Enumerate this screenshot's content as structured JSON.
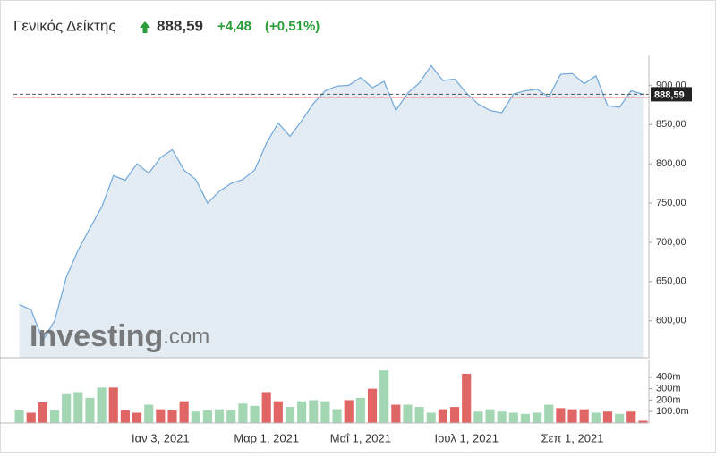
{
  "header": {
    "title": "Γενικός Δείκτης",
    "price": "888,59",
    "change": "+4,48",
    "change_pct": "(+0,51%)"
  },
  "watermark": {
    "brand": "Investing",
    "domain": ".com"
  },
  "chart_data": [
    {
      "type": "area",
      "color": "#6fa8dc",
      "fill": "#e3ebf3",
      "categories": [
        null,
        null,
        null,
        null,
        null,
        null,
        null,
        null,
        null,
        null,
        null,
        null,
        "Ιαν 3, 2021",
        null,
        null,
        null,
        null,
        null,
        null,
        null,
        null,
        "Μαρ 1, 2021",
        null,
        null,
        null,
        null,
        null,
        null,
        null,
        "Μαΐ 1, 2021",
        null,
        null,
        null,
        null,
        null,
        null,
        null,
        null,
        "Ιουλ 1, 2021",
        null,
        null,
        null,
        null,
        null,
        null,
        null,
        null,
        "Σεπ 1, 2021",
        null,
        null,
        null,
        null,
        null,
        null
      ],
      "values": [
        621,
        614,
        575,
        600,
        656,
        690,
        718,
        745,
        785,
        779,
        800,
        788,
        808,
        818,
        792,
        780,
        750,
        765,
        775,
        780,
        792,
        826,
        852,
        835,
        855,
        877,
        893,
        899,
        900,
        910,
        897,
        905,
        868,
        890,
        903,
        925,
        906,
        908,
        890,
        876,
        868,
        865,
        889,
        893,
        895,
        885,
        914,
        915,
        902,
        912,
        874,
        872,
        893,
        888.59
      ],
      "ylim": [
        553,
        938
      ],
      "yticks": [
        {
          "value": 600,
          "label": "600,00"
        },
        {
          "value": 650,
          "label": "650,00"
        },
        {
          "value": 700,
          "label": "700,00"
        },
        {
          "value": 750,
          "label": "750,00"
        },
        {
          "value": 800,
          "label": "800,00"
        },
        {
          "value": 850,
          "label": "850,00"
        },
        {
          "value": 900,
          "label": "900,00"
        }
      ],
      "last_value": 888.59,
      "last_label": "888,59",
      "prev_close": 884.11
    },
    {
      "type": "bar",
      "values": [
        110,
        90,
        180,
        110,
        260,
        270,
        220,
        310,
        310,
        110,
        90,
        160,
        120,
        110,
        190,
        100,
        110,
        120,
        110,
        170,
        150,
        270,
        190,
        140,
        190,
        200,
        190,
        120,
        200,
        220,
        300,
        460,
        160,
        160,
        140,
        90,
        120,
        140,
        430,
        100,
        120,
        100,
        90,
        80,
        90,
        160,
        130,
        120,
        120,
        90,
        100,
        80,
        100,
        20
      ],
      "colors": [
        "#a3d7b4",
        "#e06666",
        "#e06666",
        "#a3d7b4",
        "#a3d7b4",
        "#a3d7b4",
        "#a3d7b4",
        "#a3d7b4",
        "#e06666",
        "#e06666",
        "#e06666",
        "#a3d7b4",
        "#e06666",
        "#e06666",
        "#e06666",
        "#a3d7b4",
        "#a3d7b4",
        "#a3d7b4",
        "#a3d7b4",
        "#a3d7b4",
        "#a3d7b4",
        "#e06666",
        "#e06666",
        "#a3d7b4",
        "#a3d7b4",
        "#a3d7b4",
        "#a3d7b4",
        "#a3d7b4",
        "#e06666",
        "#a3d7b4",
        "#e06666",
        "#a3d7b4",
        "#e06666",
        "#a3d7b4",
        "#a3d7b4",
        "#a3d7b4",
        "#e06666",
        "#e06666",
        "#e06666",
        "#a3d7b4",
        "#a3d7b4",
        "#a3d7b4",
        "#a3d7b4",
        "#a3d7b4",
        "#a3d7b4",
        "#a3d7b4",
        "#e06666",
        "#e06666",
        "#e06666",
        "#a3d7b4",
        "#e06666",
        "#a3d7b4",
        "#e06666",
        "#e06666"
      ],
      "ylim": [
        0,
        555
      ],
      "yticks": [
        {
          "value": 100,
          "label": "100.0m"
        },
        {
          "value": 200,
          "label": "200m"
        },
        {
          "value": 300,
          "label": "300m"
        },
        {
          "value": 400,
          "label": "400m"
        }
      ]
    }
  ]
}
